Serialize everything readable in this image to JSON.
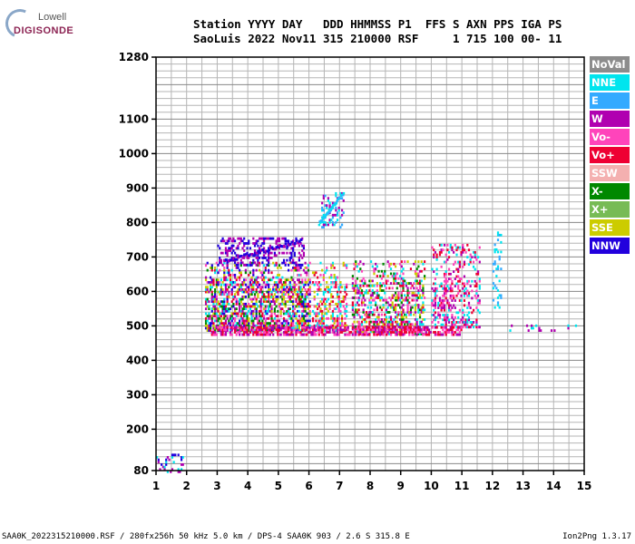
{
  "header": {
    "row1": "Station YYYY DAY   DDD HHMMSS P1  FFS S AXN PPS IGA PS",
    "row2": "SaoLuis 2022 Nov11 315 210000 RSF     1 715 100 00- 11"
  },
  "logo": {
    "line1": "Lowell",
    "line2": "DIGISONDE"
  },
  "legend": [
    {
      "label": "NoVal",
      "color": "#8c8c8c"
    },
    {
      "label": "NNE",
      "color": "#00e5ee"
    },
    {
      "label": "E",
      "color": "#33aaff"
    },
    {
      "label": "W",
      "color": "#b000b0"
    },
    {
      "label": "Vo-",
      "color": "#ff44bb"
    },
    {
      "label": "Vo+",
      "color": "#ee0033"
    },
    {
      "label": "SSW",
      "color": "#f4b0b0"
    },
    {
      "label": "X-",
      "color": "#008800"
    },
    {
      "label": "X+",
      "color": "#77bb55"
    },
    {
      "label": "SSE",
      "color": "#cccc00"
    },
    {
      "label": "NNW",
      "color": "#2200dd"
    }
  ],
  "footer": {
    "left": "SAA0K_2022315210000.RSF / 280fx256h 50 kHz 5.0 km / DPS-4 SAA0K 903 / 2.6 S 315.8 E",
    "right": "Ion2Png 1.3.17"
  },
  "chart_data": {
    "type": "scatter",
    "title": "",
    "xlabel": "",
    "ylabel": "",
    "xlim": [
      1,
      15
    ],
    "ylim": [
      80,
      1280
    ],
    "x_ticks": [
      1,
      2,
      3,
      4,
      5,
      6,
      7,
      8,
      9,
      10,
      11,
      12,
      13,
      14,
      15
    ],
    "y_ticks": [
      80,
      200,
      300,
      400,
      500,
      600,
      700,
      800,
      900,
      1000,
      1100,
      1280
    ],
    "grid": true,
    "clusters": [
      {
        "name": "low-echoes",
        "x": [
          1.0,
          1.9
        ],
        "y": [
          80,
          130
        ],
        "colors": [
          "#2200dd",
          "#b000b0",
          "#00e5ee"
        ],
        "density": 0.25
      },
      {
        "name": "spread-F-main",
        "x": [
          2.6,
          6.0
        ],
        "y": [
          490,
          690
        ],
        "colors": [
          "#b000b0",
          "#2200dd",
          "#ff44bb",
          "#ee0033",
          "#00e5ee",
          "#008800",
          "#cccc00"
        ],
        "density": 0.55
      },
      {
        "name": "spread-F-mid",
        "x": [
          6.1,
          7.2
        ],
        "y": [
          490,
          690
        ],
        "colors": [
          "#ff44bb",
          "#ee0033",
          "#cccc00",
          "#00e5ee"
        ],
        "density": 0.35
      },
      {
        "name": "spread-F-right",
        "x": [
          7.4,
          9.8
        ],
        "y": [
          480,
          690
        ],
        "colors": [
          "#00e5ee",
          "#b000b0",
          "#ff44bb",
          "#ee0033",
          "#008800",
          "#cccc00"
        ],
        "density": 0.4
      },
      {
        "name": "spread-F-far",
        "x": [
          10.0,
          11.6
        ],
        "y": [
          500,
          740
        ],
        "colors": [
          "#b000b0",
          "#ff44bb",
          "#ee0033",
          "#00e5ee"
        ],
        "density": 0.35
      },
      {
        "name": "bottom-edge",
        "x": [
          2.8,
          11.0
        ],
        "y": [
          478,
          505
        ],
        "colors": [
          "#ee0033",
          "#b000b0",
          "#ff44bb"
        ],
        "density": 0.6
      },
      {
        "name": "upper-trace",
        "x": [
          3.0,
          5.8
        ],
        "y": [
          680,
          760
        ],
        "colors": [
          "#2200dd",
          "#b000b0"
        ],
        "density": 0.3
      },
      {
        "name": "cusp-trace",
        "x": [
          6.4,
          7.1
        ],
        "y": [
          790,
          890
        ],
        "colors": [
          "#33aaff",
          "#00e5ee",
          "#b000b0"
        ],
        "density": 0.3
      },
      {
        "name": "sparse-12",
        "x": [
          12.0,
          12.3
        ],
        "y": [
          550,
          780
        ],
        "colors": [
          "#00e5ee",
          "#33aaff"
        ],
        "density": 0.15
      },
      {
        "name": "sparse-line-500",
        "x": [
          12.1,
          14.8
        ],
        "y": [
          490,
          505
        ],
        "colors": [
          "#b000b0",
          "#00e5ee"
        ],
        "density": 0.08
      }
    ]
  }
}
